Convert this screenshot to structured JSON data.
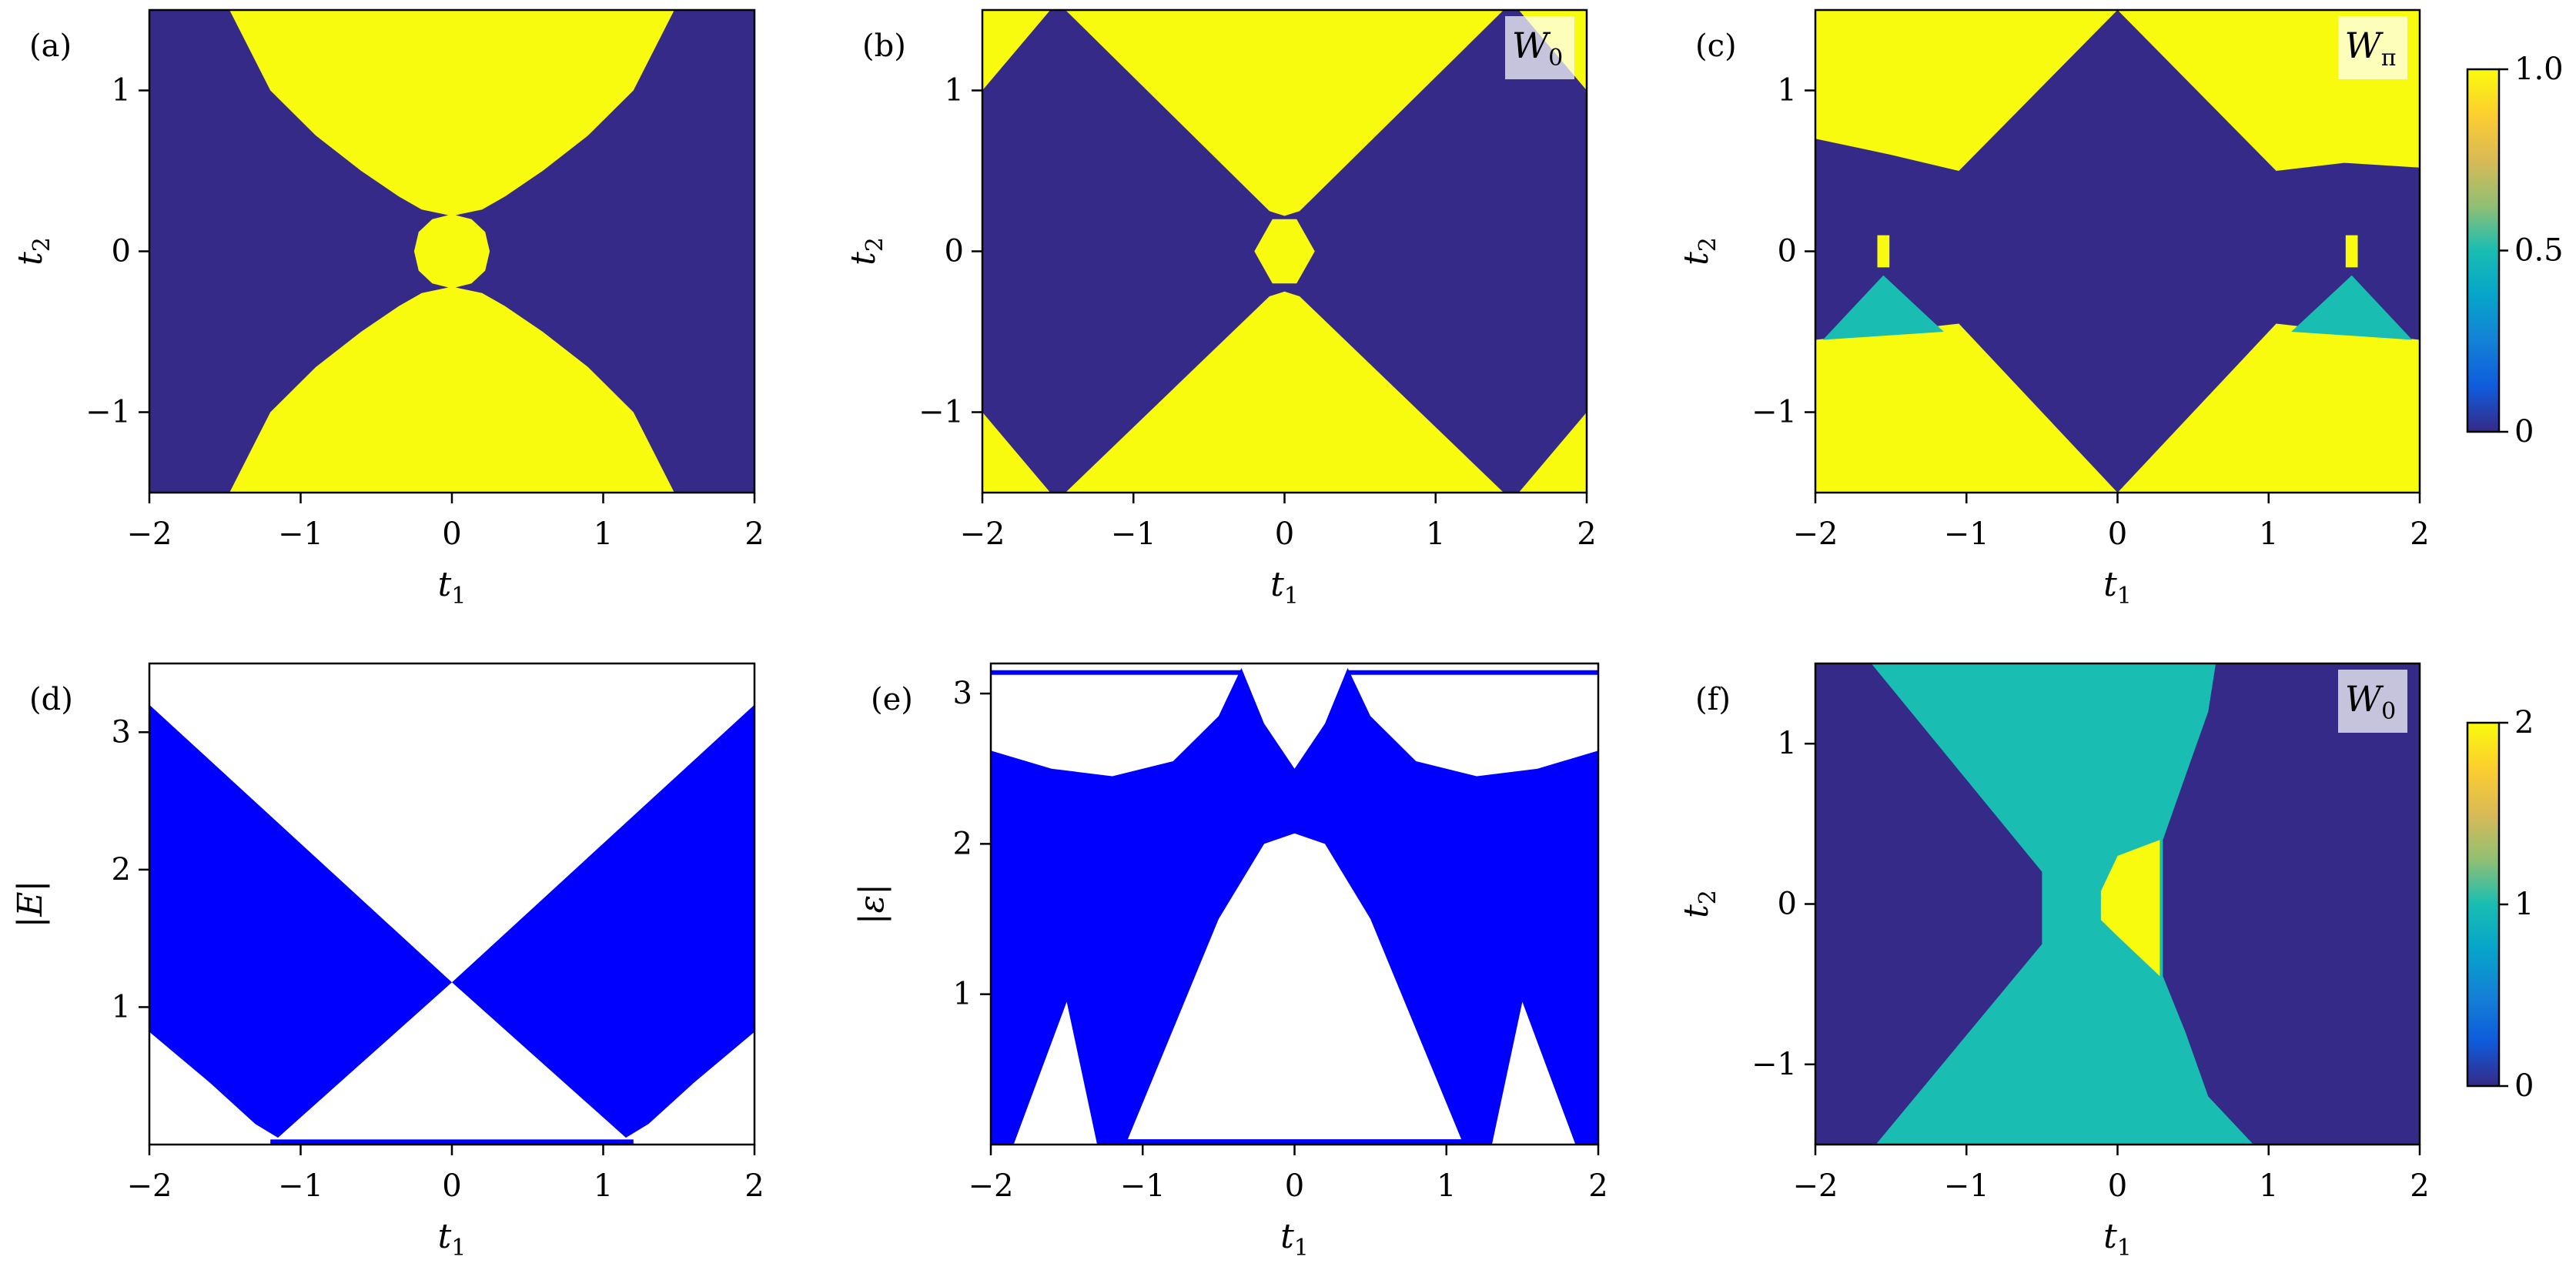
{
  "colormap": [
    "#352a87",
    "#0f5cdd",
    "#1481d6",
    "#06a4ca",
    "#19bdb2",
    "#92bf73",
    "#d9ba56",
    "#fcce2e",
    "#f9fb0e"
  ],
  "chart_data": [
    {
      "type": "heatmap",
      "panel_label": "(a)",
      "xlabel": {
        "main": "t",
        "sub": "1"
      },
      "ylabel": {
        "main": "t",
        "sub": "2"
      },
      "xlim": [
        -2,
        2
      ],
      "ylim": [
        -1.5,
        1.5
      ],
      "xticks": [
        {
          "value": -2,
          "label": "−2"
        },
        {
          "value": -1,
          "label": "−1"
        },
        0,
        1,
        2
      ],
      "yticks": [
        {
          "value": -1,
          "label": "−1"
        },
        0,
        1
      ],
      "zlim": [
        0,
        1
      ],
      "background": 0,
      "regions": [
        {
          "value": 1,
          "t1": [
            -1.47,
            -1.2,
            -0.9,
            -0.6,
            -0.35,
            -0.2,
            0,
            0.2,
            0.35,
            0.6,
            0.9,
            1.2,
            1.47
          ],
          "t2": [
            1.5,
            1.0,
            0.72,
            0.5,
            0.34,
            0.26,
            0.22,
            0.26,
            0.34,
            0.5,
            0.72,
            1.0,
            1.5
          ]
        },
        {
          "value": 1,
          "t1": [
            -1.47,
            -1.2,
            -0.9,
            -0.6,
            -0.35,
            -0.2,
            0,
            0.2,
            0.35,
            0.6,
            0.9,
            1.2,
            1.47
          ],
          "t2": [
            -1.5,
            -1.0,
            -0.72,
            -0.5,
            -0.34,
            -0.26,
            -0.22,
            -0.26,
            -0.34,
            -0.5,
            -0.72,
            -1.0,
            -1.5
          ]
        },
        {
          "value": 1,
          "t1": [
            0.25,
            0.22,
            0.13,
            0,
            -0.13,
            -0.22,
            -0.25,
            -0.22,
            -0.13,
            0,
            0.13,
            0.22
          ],
          "t2": [
            0,
            0.12,
            0.2,
            0.23,
            0.2,
            0.12,
            0,
            -0.12,
            -0.2,
            -0.23,
            -0.2,
            -0.12
          ]
        }
      ]
    },
    {
      "type": "heatmap",
      "panel_label": "(b)",
      "xlabel": {
        "main": "t",
        "sub": "1"
      },
      "ylabel": {
        "main": "t",
        "sub": "2"
      },
      "xlim": [
        -2,
        2
      ],
      "ylim": [
        -1.5,
        1.5
      ],
      "xticks": [
        {
          "value": -2,
          "label": "−2"
        },
        {
          "value": -1,
          "label": "−1"
        },
        0,
        1,
        2
      ],
      "yticks": [
        {
          "value": -1,
          "label": "−1"
        },
        0,
        1
      ],
      "zlim": [
        0,
        1
      ],
      "background": 0,
      "annotation": {
        "main": "W",
        "sub": "0"
      },
      "regions": [
        {
          "value": 1,
          "t1": [
            -1.45,
            -0.1,
            0,
            0.1,
            1.45
          ],
          "t2": [
            1.5,
            0.25,
            0.22,
            0.25,
            1.5
          ]
        },
        {
          "value": 1,
          "t1": [
            -1.45,
            -0.1,
            0,
            0.1,
            1.45
          ],
          "t2": [
            -1.5,
            -0.28,
            -0.25,
            -0.28,
            -1.5
          ]
        },
        {
          "value": 1,
          "t1": [
            -0.2,
            -0.08,
            0.08,
            0.2,
            0.08,
            -0.08
          ],
          "t2": [
            0,
            0.2,
            0.2,
            0,
            -0.2,
            -0.2
          ]
        },
        {
          "value": 1,
          "t1": [
            -2,
            -1.55,
            -2
          ],
          "t2": [
            1.5,
            1.5,
            1.0
          ]
        },
        {
          "value": 1,
          "t1": [
            1.55,
            2,
            2
          ],
          "t2": [
            1.5,
            1.5,
            1.0
          ]
        },
        {
          "value": 1,
          "t1": [
            -2,
            -1.55,
            -2
          ],
          "t2": [
            -1.5,
            -1.5,
            -1.0
          ]
        },
        {
          "value": 1,
          "t1": [
            1.55,
            2,
            2
          ],
          "t2": [
            -1.5,
            -1.5,
            -1.0
          ]
        }
      ]
    },
    {
      "type": "heatmap",
      "panel_label": "(c)",
      "xlabel": {
        "main": "t",
        "sub": "1"
      },
      "ylabel": {
        "main": "t",
        "sub": "2"
      },
      "xlim": [
        -2,
        2
      ],
      "ylim": [
        -1.5,
        1.5
      ],
      "xticks": [
        {
          "value": -2,
          "label": "−2"
        },
        {
          "value": -1,
          "label": "−1"
        },
        0,
        1,
        2
      ],
      "yticks": [
        {
          "value": -1,
          "label": "−1"
        },
        0,
        1
      ],
      "zlim": [
        0,
        1
      ],
      "zticks": [
        0,
        0.5,
        {
          "value": 1,
          "label": "1.0"
        }
      ],
      "background": 0,
      "annotation": {
        "main": "W",
        "sub": "π"
      },
      "regions": [
        {
          "value": 1,
          "t1": [
            -2,
            0,
            -1.05,
            -1.5,
            -2
          ],
          "t2": [
            1.5,
            1.5,
            0.5,
            0.6,
            0.7
          ]
        },
        {
          "value": 1,
          "t1": [
            0,
            2,
            2,
            1.5,
            1.05
          ],
          "t2": [
            1.5,
            1.5,
            0.52,
            0.55,
            0.5
          ]
        },
        {
          "value": 1,
          "t1": [
            -2,
            0,
            -1.05,
            -2
          ],
          "t2": [
            -1.5,
            -1.5,
            -0.45,
            -0.55
          ]
        },
        {
          "value": 1,
          "t1": [
            0,
            2,
            2,
            1.05
          ],
          "t2": [
            -1.5,
            -1.5,
            -0.55,
            -0.45
          ]
        },
        {
          "value": 0.5,
          "t1": [
            -1.95,
            -1.55,
            -1.15
          ],
          "t2": [
            -0.55,
            -0.15,
            -0.5
          ]
        },
        {
          "value": 0.5,
          "t1": [
            1.15,
            1.55,
            1.95
          ],
          "t2": [
            -0.5,
            -0.15,
            -0.55
          ]
        },
        {
          "value": 1,
          "t1": [
            -1.59,
            -1.51,
            -1.51,
            -1.59
          ],
          "t2": [
            0.1,
            0.1,
            -0.1,
            -0.1
          ]
        },
        {
          "value": 1,
          "t1": [
            1.51,
            1.59,
            1.59,
            1.51
          ],
          "t2": [
            0.1,
            0.1,
            -0.1,
            -0.1
          ]
        }
      ]
    },
    {
      "type": "area",
      "panel_label": "(d)",
      "xlabel": {
        "main": "t",
        "sub": "1"
      },
      "ylabel": "|E|",
      "xlim": [
        -2,
        2
      ],
      "ylim": [
        0,
        3.5
      ],
      "xticks": [
        {
          "value": -2,
          "label": "−2"
        },
        {
          "value": -1,
          "label": "−1"
        },
        0,
        1,
        2
      ],
      "yticks": [
        1,
        2,
        3
      ],
      "series": [
        {
          "color": "#0000ff",
          "rings": [
            {
              "x": [
                -2,
                0,
                -1.15,
                -1.3,
                -1.6,
                -2
              ],
              "y": [
                3.2,
                1.18,
                0.05,
                0.15,
                0.45,
                0.82
              ]
            },
            {
              "x": [
                2,
                0,
                1.15,
                1.3,
                1.6,
                2
              ],
              "y": [
                3.2,
                1.18,
                0.05,
                0.15,
                0.45,
                0.82
              ]
            }
          ]
        },
        {
          "color": "#0000ff",
          "x": [
            -1.2,
            1.2
          ],
          "y": [
            0.02,
            0.02
          ]
        }
      ]
    },
    {
      "type": "area",
      "panel_label": "(e)",
      "xlabel": {
        "main": "t",
        "sub": "1"
      },
      "ylabel": "|ε|",
      "xlim": [
        -2,
        2
      ],
      "ylim": [
        0,
        3.2
      ],
      "xticks": [
        {
          "value": -2,
          "label": "−2"
        },
        {
          "value": -1,
          "label": "−1"
        },
        0,
        1,
        2
      ],
      "yticks": [
        1,
        2,
        3
      ],
      "series": [
        {
          "color": "#0000ff",
          "rings": [
            {
              "x": [
                -2,
                -2,
                -1.6,
                -1.2,
                -0.8,
                -0.5,
                -0.35,
                -0.2,
                0,
                0.2,
                0.35,
                0.5,
                0.8,
                1.2,
                1.6,
                2,
                2
              ],
              "y": [
                0,
                2.62,
                2.5,
                2.45,
                2.55,
                2.85,
                3.17,
                2.8,
                2.5,
                2.8,
                3.17,
                2.85,
                2.55,
                2.45,
                2.5,
                2.62,
                0
              ]
            },
            {
              "x": [
                -1.1,
                -0.5,
                -0.2,
                0,
                0.2,
                0.5,
                1.1
              ],
              "y": [
                0.03,
                1.5,
                2.0,
                2.07,
                2.0,
                1.5,
                0.03
              ]
            },
            {
              "x": [
                -1.85,
                -1.5,
                -1.3
              ],
              "y": [
                0,
                0.95,
                0
              ]
            },
            {
              "x": [
                1.3,
                1.5,
                1.85
              ],
              "y": [
                0,
                0.95,
                0
              ]
            }
          ]
        },
        {
          "color": "#0000ff",
          "x": [
            -2,
            -0.35,
            null,
            0.35,
            2
          ],
          "y": [
            3.14,
            3.14,
            null,
            3.14,
            3.14
          ]
        },
        {
          "color": "#0000ff",
          "x": [
            -1.15,
            1.15
          ],
          "y": [
            0.02,
            0.02
          ]
        }
      ]
    },
    {
      "type": "heatmap",
      "panel_label": "(f)",
      "xlabel": {
        "main": "t",
        "sub": "1"
      },
      "ylabel": {
        "main": "t",
        "sub": "2"
      },
      "xlim": [
        -2,
        2
      ],
      "ylim": [
        -1.5,
        1.5
      ],
      "xticks": [
        {
          "value": -2,
          "label": "−2"
        },
        {
          "value": -1,
          "label": "−1"
        },
        0,
        1,
        2
      ],
      "yticks": [
        {
          "value": -1,
          "label": "−1"
        },
        0,
        1
      ],
      "zlim": [
        0,
        2
      ],
      "zticks": [
        0,
        1,
        2
      ],
      "background": 0,
      "annotation": {
        "main": "W",
        "sub": "0"
      },
      "regions": [
        {
          "value": 1,
          "t1": [
            -1.63,
            0.65,
            0.6,
            0.45,
            0.3,
            0.3,
            0.45,
            0.6,
            0.9,
            -1.6,
            -0.5,
            -0.5
          ],
          "t2": [
            1.5,
            1.5,
            1.2,
            0.8,
            0.4,
            -0.45,
            -0.8,
            -1.2,
            -1.5,
            -1.5,
            -0.25,
            0.2
          ]
        },
        {
          "value": 2,
          "t1": [
            0,
            0.28,
            0.28,
            0,
            -0.11,
            -0.11
          ],
          "t2": [
            0.3,
            0.4,
            -0.45,
            -0.2,
            -0.1,
            0.08
          ]
        }
      ]
    }
  ]
}
